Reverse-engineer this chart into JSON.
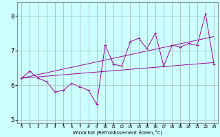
{
  "xlabel": "Windchill (Refroidissement éolien,°C)",
  "x": [
    0,
    1,
    2,
    3,
    4,
    5,
    6,
    7,
    8,
    9,
    10,
    11,
    12,
    13,
    14,
    15,
    16,
    17,
    18,
    19,
    20,
    21,
    22,
    23
  ],
  "y_main": [
    6.2,
    6.4,
    6.2,
    6.1,
    5.8,
    5.85,
    6.05,
    5.95,
    5.85,
    5.45,
    7.15,
    6.6,
    6.55,
    7.25,
    7.35,
    7.05,
    7.5,
    6.55,
    7.15,
    7.1,
    7.2,
    7.15,
    8.05,
    6.6
  ],
  "trend1_x": [
    0,
    23
  ],
  "trend1_y": [
    6.2,
    7.4
  ],
  "trend2_x": [
    0,
    23
  ],
  "trend2_y": [
    6.2,
    6.65
  ],
  "line_color": "#990099",
  "bg_color": "#ccffff",
  "grid_color": "#999999",
  "ylim": [
    4.9,
    8.4
  ],
  "yticks": [
    5,
    6,
    7,
    8
  ],
  "xlim": [
    -0.5,
    23.5
  ],
  "marker": "+"
}
